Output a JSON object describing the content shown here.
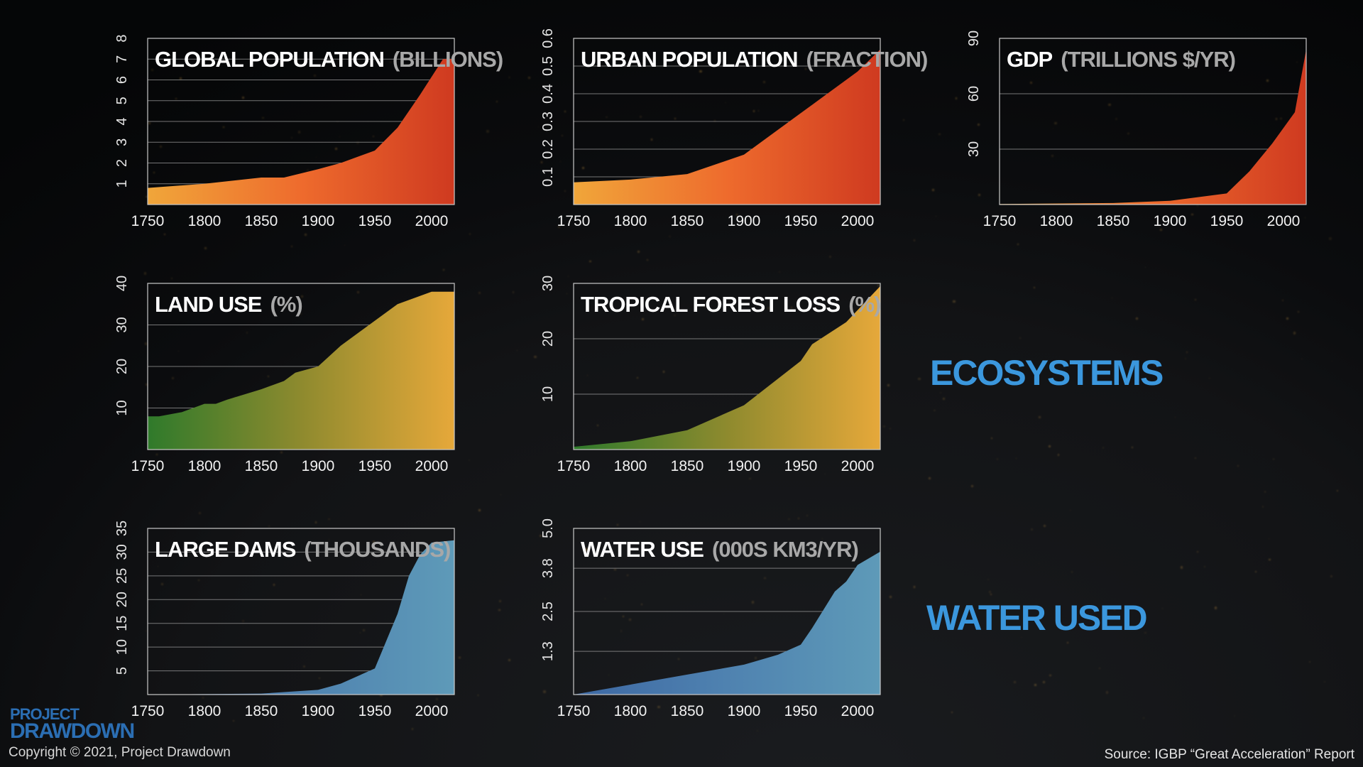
{
  "chart_data": [
    {
      "type": "area",
      "title": "GLOBAL POPULATION",
      "unit": "(BILLIONS)",
      "x": [
        1750,
        1800,
        1850,
        1870,
        1900,
        1920,
        1950,
        1970,
        1990,
        2010
      ],
      "y": [
        0.8,
        1.0,
        1.3,
        1.3,
        1.7,
        2.0,
        2.6,
        3.7,
        5.3,
        7.0
      ],
      "xlim": [
        1750,
        2020
      ],
      "ylim": [
        0,
        8
      ],
      "xticks": [
        "1750",
        "1800",
        "1850",
        "1900",
        "1950",
        "2000"
      ],
      "yticks": [
        "1",
        "2",
        "3",
        "4",
        "5",
        "6",
        "7",
        "8"
      ],
      "gridlines": [
        1,
        2,
        3,
        4,
        5,
        6,
        7
      ],
      "colors": [
        "#f0a63a",
        "#ee6b2d",
        "#cf3a20"
      ],
      "grid": true
    },
    {
      "type": "area",
      "title": "URBAN POPULATION",
      "unit": "(FRACTION)",
      "x": [
        1750,
        1800,
        1850,
        1900,
        1950,
        1970,
        2000,
        2020
      ],
      "y": [
        0.08,
        0.09,
        0.11,
        0.18,
        0.33,
        0.39,
        0.48,
        0.56
      ],
      "xlim": [
        1750,
        2020
      ],
      "ylim": [
        0,
        0.6
      ],
      "xticks": [
        "1750",
        "1800",
        "1850",
        "1900",
        "1950",
        "2000"
      ],
      "yticks": [
        "0.1",
        "0.2",
        "0.3",
        "0.4",
        "0.5",
        "0.6"
      ],
      "gridlines": [
        0.1,
        0.2,
        0.3,
        0.4,
        0.5
      ],
      "colors": [
        "#f0a63a",
        "#ee6b2d",
        "#cf3a20"
      ],
      "grid": true
    },
    {
      "type": "area",
      "title": "GDP",
      "unit": "(TRILLIONS $/YR)",
      "x": [
        1750,
        1850,
        1900,
        1950,
        1970,
        1990,
        2010,
        2020
      ],
      "y": [
        0.3,
        0.8,
        2,
        6,
        18,
        33,
        50,
        84
      ],
      "xlim": [
        1750,
        2020
      ],
      "ylim": [
        0,
        90
      ],
      "xticks": [
        "1750",
        "1800",
        "1850",
        "1900",
        "1950",
        "2000"
      ],
      "yticks": [
        "30",
        "60",
        "90"
      ],
      "gridlines": [
        30,
        60
      ],
      "colors": [
        "#f0a63a",
        "#ee6b2d",
        "#cf3a20"
      ],
      "grid": true
    },
    {
      "type": "area",
      "title": "LAND USE",
      "unit": "(%)",
      "x": [
        1750,
        1760,
        1780,
        1800,
        1810,
        1820,
        1850,
        1870,
        1880,
        1900,
        1920,
        1950,
        1970,
        2000,
        2020
      ],
      "y": [
        8,
        8,
        9,
        11,
        11,
        12,
        14.5,
        16.5,
        18.5,
        20,
        25,
        31,
        35,
        38,
        38
      ],
      "xlim": [
        1750,
        2020
      ],
      "ylim": [
        0,
        40
      ],
      "xticks": [
        "1750",
        "1800",
        "1850",
        "1900",
        "1950",
        "2000"
      ],
      "yticks": [
        "10",
        "20",
        "30",
        "40"
      ],
      "gridlines": [
        10,
        20,
        30
      ],
      "colors": [
        "#2f7a2b",
        "#8e8a2e",
        "#e6a83a"
      ],
      "grid": true
    },
    {
      "type": "area",
      "title": "TROPICAL FOREST LOSS",
      "unit": "(%)",
      "x": [
        1750,
        1800,
        1850,
        1900,
        1950,
        1960,
        1990,
        2020
      ],
      "y": [
        0.5,
        1.5,
        3.5,
        8,
        16,
        19,
        23,
        29.5
      ],
      "xlim": [
        1750,
        2020
      ],
      "ylim": [
        0,
        30
      ],
      "xticks": [
        "1750",
        "1800",
        "1850",
        "1900",
        "1950",
        "2000"
      ],
      "yticks": [
        "10",
        "20",
        "30"
      ],
      "gridlines": [
        10,
        20
      ],
      "colors": [
        "#2f7a2b",
        "#8e8a2e",
        "#e6a83a"
      ],
      "grid": true
    },
    {
      "type": "area",
      "title": "LARGE DAMS",
      "unit": "(THOUSANDS)",
      "x": [
        1750,
        1850,
        1900,
        1920,
        1950,
        1970,
        1980,
        1990,
        2000,
        2020
      ],
      "y": [
        0,
        0.2,
        1,
        2.3,
        5.5,
        17,
        25,
        29.5,
        32,
        32.5
      ],
      "xlim": [
        1750,
        2020
      ],
      "ylim": [
        0,
        35
      ],
      "xticks": [
        "1750",
        "1800",
        "1850",
        "1900",
        "1950",
        "2000"
      ],
      "yticks": [
        "5",
        "10",
        "15",
        "20",
        "25",
        "30",
        "35"
      ],
      "gridlines": [
        5,
        10,
        15,
        20,
        25,
        30
      ],
      "colors": [
        "#3d68a3",
        "#4f82b0",
        "#5e9ab8"
      ],
      "grid": true
    },
    {
      "type": "area",
      "title": "WATER USE",
      "unit": "(000S KM3/YR)",
      "x": [
        1750,
        1800,
        1850,
        1900,
        1910,
        1930,
        1950,
        1960,
        1980,
        1990,
        2000,
        2020
      ],
      "y": [
        0,
        0.3,
        0.6,
        0.9,
        1.0,
        1.2,
        1.5,
        2.0,
        3.1,
        3.4,
        3.9,
        4.3
      ],
      "xlim": [
        1750,
        2020
      ],
      "ylim": [
        0,
        5.0
      ],
      "xticks": [
        "1750",
        "1800",
        "1850",
        "1900",
        "1950",
        "2000"
      ],
      "yticks": [
        "1.3",
        "2.5",
        "3.8",
        "5.0"
      ],
      "gridlines": [
        1.3,
        2.5,
        3.8
      ],
      "colors": [
        "#3d68a3",
        "#4f82b0",
        "#5e9ab8"
      ],
      "grid": true
    }
  ],
  "labels": {
    "ecosystems": "ECOSYSTEMS",
    "water_used": "WATER USED"
  },
  "brand": {
    "line1": "PROJECT",
    "line2": "DRAWDOWN"
  },
  "footer": {
    "copyright": "Copyright © 2021, Project Drawdown",
    "source": "Source: IGBP “Great Acceleration” Report"
  }
}
